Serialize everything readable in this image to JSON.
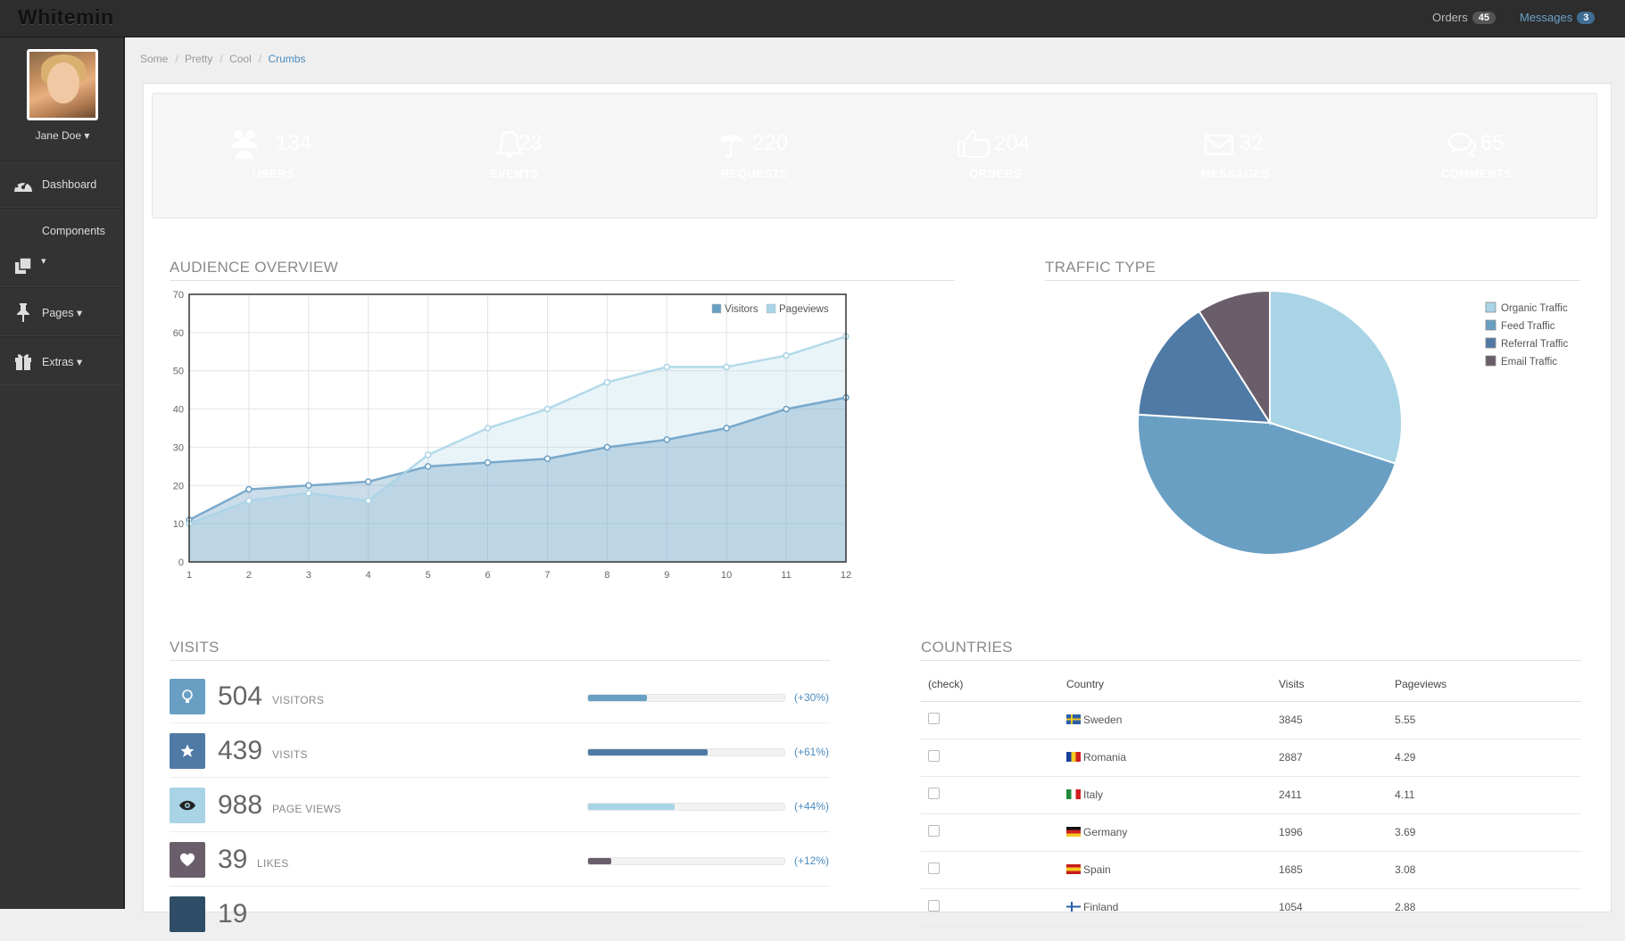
{
  "app": {
    "brand": "Whitemin"
  },
  "topbar": {
    "orders_label": "Orders",
    "orders_count": "45",
    "messages_label": "Messages",
    "messages_count": "3"
  },
  "user": {
    "name": "Jane Doe ▾"
  },
  "sidebar": {
    "items": [
      {
        "label": "Dashboard",
        "icon": "dashboard-icon"
      },
      {
        "label": "Components",
        "icon": "copy-icon"
      },
      {
        "label": "Pages ▾",
        "icon": "pushpin-icon"
      },
      {
        "label": "Extras ▾",
        "icon": "gift-icon"
      }
    ],
    "components_caret": "▾"
  },
  "breadcrumb": [
    "Some",
    "Pretty",
    "Cool",
    "Crumbs"
  ],
  "stats": [
    {
      "value": "134",
      "label": "USERS",
      "icon": "users-icon",
      "color": "#6a9fc4"
    },
    {
      "value": "23",
      "label": "EVENTS",
      "icon": "bell-icon",
      "color": "#4f7aa5"
    },
    {
      "value": "220",
      "label": "REQUESTS",
      "icon": "umbrella-icon",
      "color": "#7a98b0"
    },
    {
      "value": "204",
      "label": "ORDERS",
      "icon": "thumbs-up-icon",
      "color": "#2f4d66"
    },
    {
      "value": "32",
      "label": "MESSAGES",
      "icon": "envelope-icon",
      "color": "#4b6f96"
    },
    {
      "value": "65",
      "label": "COMMENTS",
      "icon": "comments-icon",
      "color": "#6a9fc4"
    }
  ],
  "sections": {
    "audience": "AUDIENCE OVERVIEW",
    "traffic": "TRAFFIC TYPE",
    "visits": "VISITS",
    "countries": "COUNTRIES"
  },
  "chart_data": [
    {
      "type": "area",
      "title": "AUDIENCE OVERVIEW",
      "x": [
        1,
        2,
        3,
        4,
        5,
        6,
        7,
        8,
        9,
        10,
        11,
        12
      ],
      "ylim": [
        0,
        70
      ],
      "yticks": [
        0,
        10,
        20,
        30,
        40,
        50,
        60,
        70
      ],
      "grid": true,
      "legend": "top-right",
      "series": [
        {
          "name": "Visitors",
          "values": [
            11,
            19,
            20,
            21,
            25,
            26,
            27,
            30,
            32,
            35,
            40,
            43
          ],
          "color": "#6a9fc4"
        },
        {
          "name": "Pageviews",
          "values": [
            10,
            16,
            18,
            16,
            28,
            35,
            40,
            47,
            51,
            51,
            54,
            59
          ],
          "color": "#a8d4e6"
        }
      ]
    },
    {
      "type": "pie",
      "title": "TRAFFIC TYPE",
      "legend": "top-right",
      "categories": [
        "Organic Traffic",
        "Feed Traffic",
        "Referral Traffic",
        "Email Traffic"
      ],
      "values": [
        30,
        46,
        15,
        9
      ],
      "colors": [
        "#a8d4e6",
        "#6a9fc4",
        "#4f7aa5",
        "#6b5e6b"
      ]
    }
  ],
  "visits": [
    {
      "value": "504",
      "label": "VISITORS",
      "pct": "(+30%)",
      "fill": 0.3,
      "icon": "lightbulb-icon",
      "color": "#6a9fc4"
    },
    {
      "value": "439",
      "label": "VISITS",
      "pct": "(+61%)",
      "fill": 0.61,
      "icon": "star-icon",
      "color": "#4f7aa5"
    },
    {
      "value": "988",
      "label": "PAGE VIEWS",
      "pct": "(+44%)",
      "fill": 0.44,
      "icon": "eye-icon",
      "color": "#a8d4e6"
    },
    {
      "value": "39",
      "label": "LIKES",
      "pct": "(+12%)",
      "fill": 0.12,
      "icon": "heart-icon",
      "color": "#6b5e6b"
    },
    {
      "value": "19",
      "label": "",
      "pct": "",
      "fill": 0,
      "icon": "generic-icon",
      "color": "#2f4d66"
    }
  ],
  "countries": {
    "headers": [
      "(check)",
      "Country",
      "Visits",
      "Pageviews"
    ],
    "rows": [
      {
        "country": "Sweden",
        "visits": "3845",
        "pageviews": "5.55",
        "flag": [
          "#2a5ea8",
          "#f4c820",
          "#2a5ea8"
        ],
        "flag_dir": "cross"
      },
      {
        "country": "Romania",
        "visits": "2887",
        "pageviews": "4.29",
        "flag": [
          "#1a3f9a",
          "#f4c820",
          "#d02020"
        ],
        "flag_dir": "v"
      },
      {
        "country": "Italy",
        "visits": "2411",
        "pageviews": "4.11",
        "flag": [
          "#1e8a3a",
          "#ffffff",
          "#d02020"
        ],
        "flag_dir": "v"
      },
      {
        "country": "Germany",
        "visits": "1996",
        "pageviews": "3.69",
        "flag": [
          "#111111",
          "#d02020",
          "#f4c820"
        ],
        "flag_dir": "h"
      },
      {
        "country": "Spain",
        "visits": "1685",
        "pageviews": "3.08",
        "flag": [
          "#c61a1a",
          "#f4c820",
          "#c61a1a"
        ],
        "flag_dir": "h"
      },
      {
        "country": "Finland",
        "visits": "1054",
        "pageviews": "2.88",
        "flag": [
          "#ffffff",
          "#2a5ea8",
          "#ffffff"
        ],
        "flag_dir": "cross"
      }
    ]
  }
}
